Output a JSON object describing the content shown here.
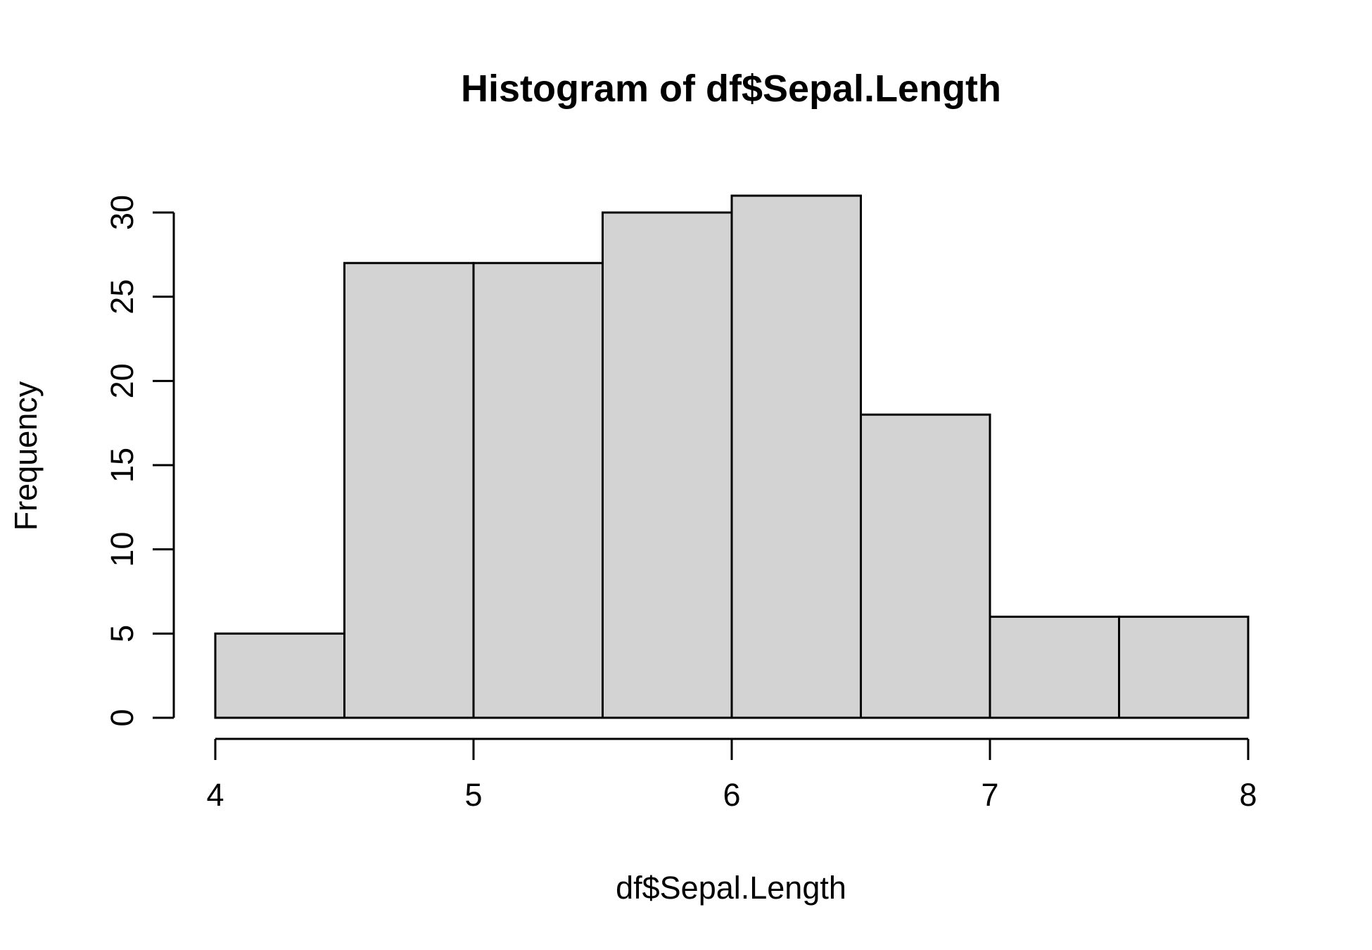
{
  "chart_data": {
    "type": "bar",
    "subtype": "histogram",
    "title": "Histogram of df$Sepal.Length",
    "xlabel": "df$Sepal.Length",
    "ylabel": "Frequency",
    "bins": [
      {
        "start": 4.0,
        "end": 4.5,
        "count": 5
      },
      {
        "start": 4.5,
        "end": 5.0,
        "count": 27
      },
      {
        "start": 5.0,
        "end": 5.5,
        "count": 27
      },
      {
        "start": 5.5,
        "end": 6.0,
        "count": 30
      },
      {
        "start": 6.0,
        "end": 6.5,
        "count": 31
      },
      {
        "start": 6.5,
        "end": 7.0,
        "count": 18
      },
      {
        "start": 7.0,
        "end": 7.5,
        "count": 6
      },
      {
        "start": 7.5,
        "end": 8.0,
        "count": 6
      }
    ],
    "xlim": [
      4,
      8
    ],
    "ylim": [
      0,
      30
    ],
    "x_ticks": [
      "4",
      "5",
      "6",
      "7",
      "8"
    ],
    "y_ticks": [
      "0",
      "5",
      "10",
      "15",
      "20",
      "25",
      "30"
    ],
    "bar_fill": "#d3d3d3",
    "bar_stroke": "#000000",
    "grid": false,
    "legend": "none"
  }
}
